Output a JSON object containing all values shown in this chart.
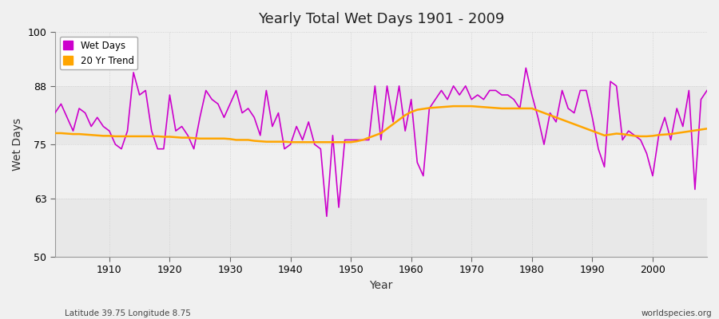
{
  "title": "Yearly Total Wet Days 1901 - 2009",
  "xlabel": "Year",
  "ylabel": "Wet Days",
  "subtitle_left": "Latitude 39.75 Longitude 8.75",
  "subtitle_right": "worldspecies.org",
  "ylim": [
    50,
    100
  ],
  "yticks": [
    50,
    63,
    75,
    88,
    100
  ],
  "xlim": [
    1901,
    2009
  ],
  "xticks": [
    1910,
    1920,
    1930,
    1940,
    1950,
    1960,
    1970,
    1980,
    1990,
    2000
  ],
  "wet_days_color": "#cc00cc",
  "trend_color": "#ffa500",
  "background_color": "#f0f0f0",
  "plot_bg_color": "#f5f5f5",
  "grid_color": "#cccccc",
  "wet_days": [
    82,
    84,
    81,
    78,
    83,
    82,
    79,
    81,
    79,
    78,
    75,
    74,
    78,
    91,
    86,
    87,
    78,
    74,
    74,
    86,
    78,
    79,
    77,
    74,
    81,
    87,
    85,
    84,
    81,
    84,
    87,
    82,
    83,
    81,
    77,
    87,
    79,
    82,
    74,
    75,
    79,
    76,
    80,
    75,
    74,
    59,
    77,
    61,
    76,
    76,
    76,
    76,
    76,
    88,
    76,
    88,
    80,
    88,
    78,
    85,
    71,
    68,
    83,
    85,
    87,
    85,
    88,
    86,
    88,
    85,
    86,
    85,
    87,
    87,
    86,
    86,
    85,
    83,
    92,
    86,
    81,
    75,
    82,
    80,
    87,
    83,
    82,
    87,
    87,
    81,
    74,
    70,
    89,
    88,
    76,
    78,
    77,
    76,
    73,
    68,
    77,
    81,
    76,
    83,
    79,
    87,
    65,
    85,
    87
  ],
  "trend": [
    77.5,
    77.5,
    77.4,
    77.3,
    77.3,
    77.2,
    77.1,
    77.0,
    76.9,
    76.9,
    76.8,
    76.8,
    76.8,
    76.8,
    76.8,
    76.8,
    76.8,
    76.8,
    76.7,
    76.7,
    76.6,
    76.5,
    76.5,
    76.4,
    76.3,
    76.3,
    76.3,
    76.3,
    76.3,
    76.2,
    76.0,
    76.0,
    76.0,
    75.8,
    75.7,
    75.6,
    75.6,
    75.6,
    75.6,
    75.5,
    75.5,
    75.5,
    75.5,
    75.5,
    75.5,
    75.5,
    75.5,
    75.5,
    75.5,
    75.5,
    75.7,
    76.0,
    76.5,
    77.0,
    77.5,
    78.5,
    79.5,
    80.5,
    81.5,
    82.2,
    82.7,
    82.9,
    83.1,
    83.2,
    83.3,
    83.4,
    83.5,
    83.5,
    83.5,
    83.5,
    83.4,
    83.3,
    83.2,
    83.1,
    83.0,
    83.0,
    83.0,
    83.0,
    83.0,
    83.0,
    82.5,
    82.0,
    81.5,
    81.0,
    80.5,
    80.0,
    79.5,
    79.0,
    78.5,
    78.0,
    77.5,
    77.0,
    77.2,
    77.4,
    77.3,
    77.1,
    76.9,
    76.8,
    76.8,
    76.9,
    77.1,
    77.2,
    77.3,
    77.5,
    77.7,
    77.9,
    78.1,
    78.3,
    78.5
  ],
  "legend_wet_days": "Wet Days",
  "legend_trend": "20 Yr Trend"
}
